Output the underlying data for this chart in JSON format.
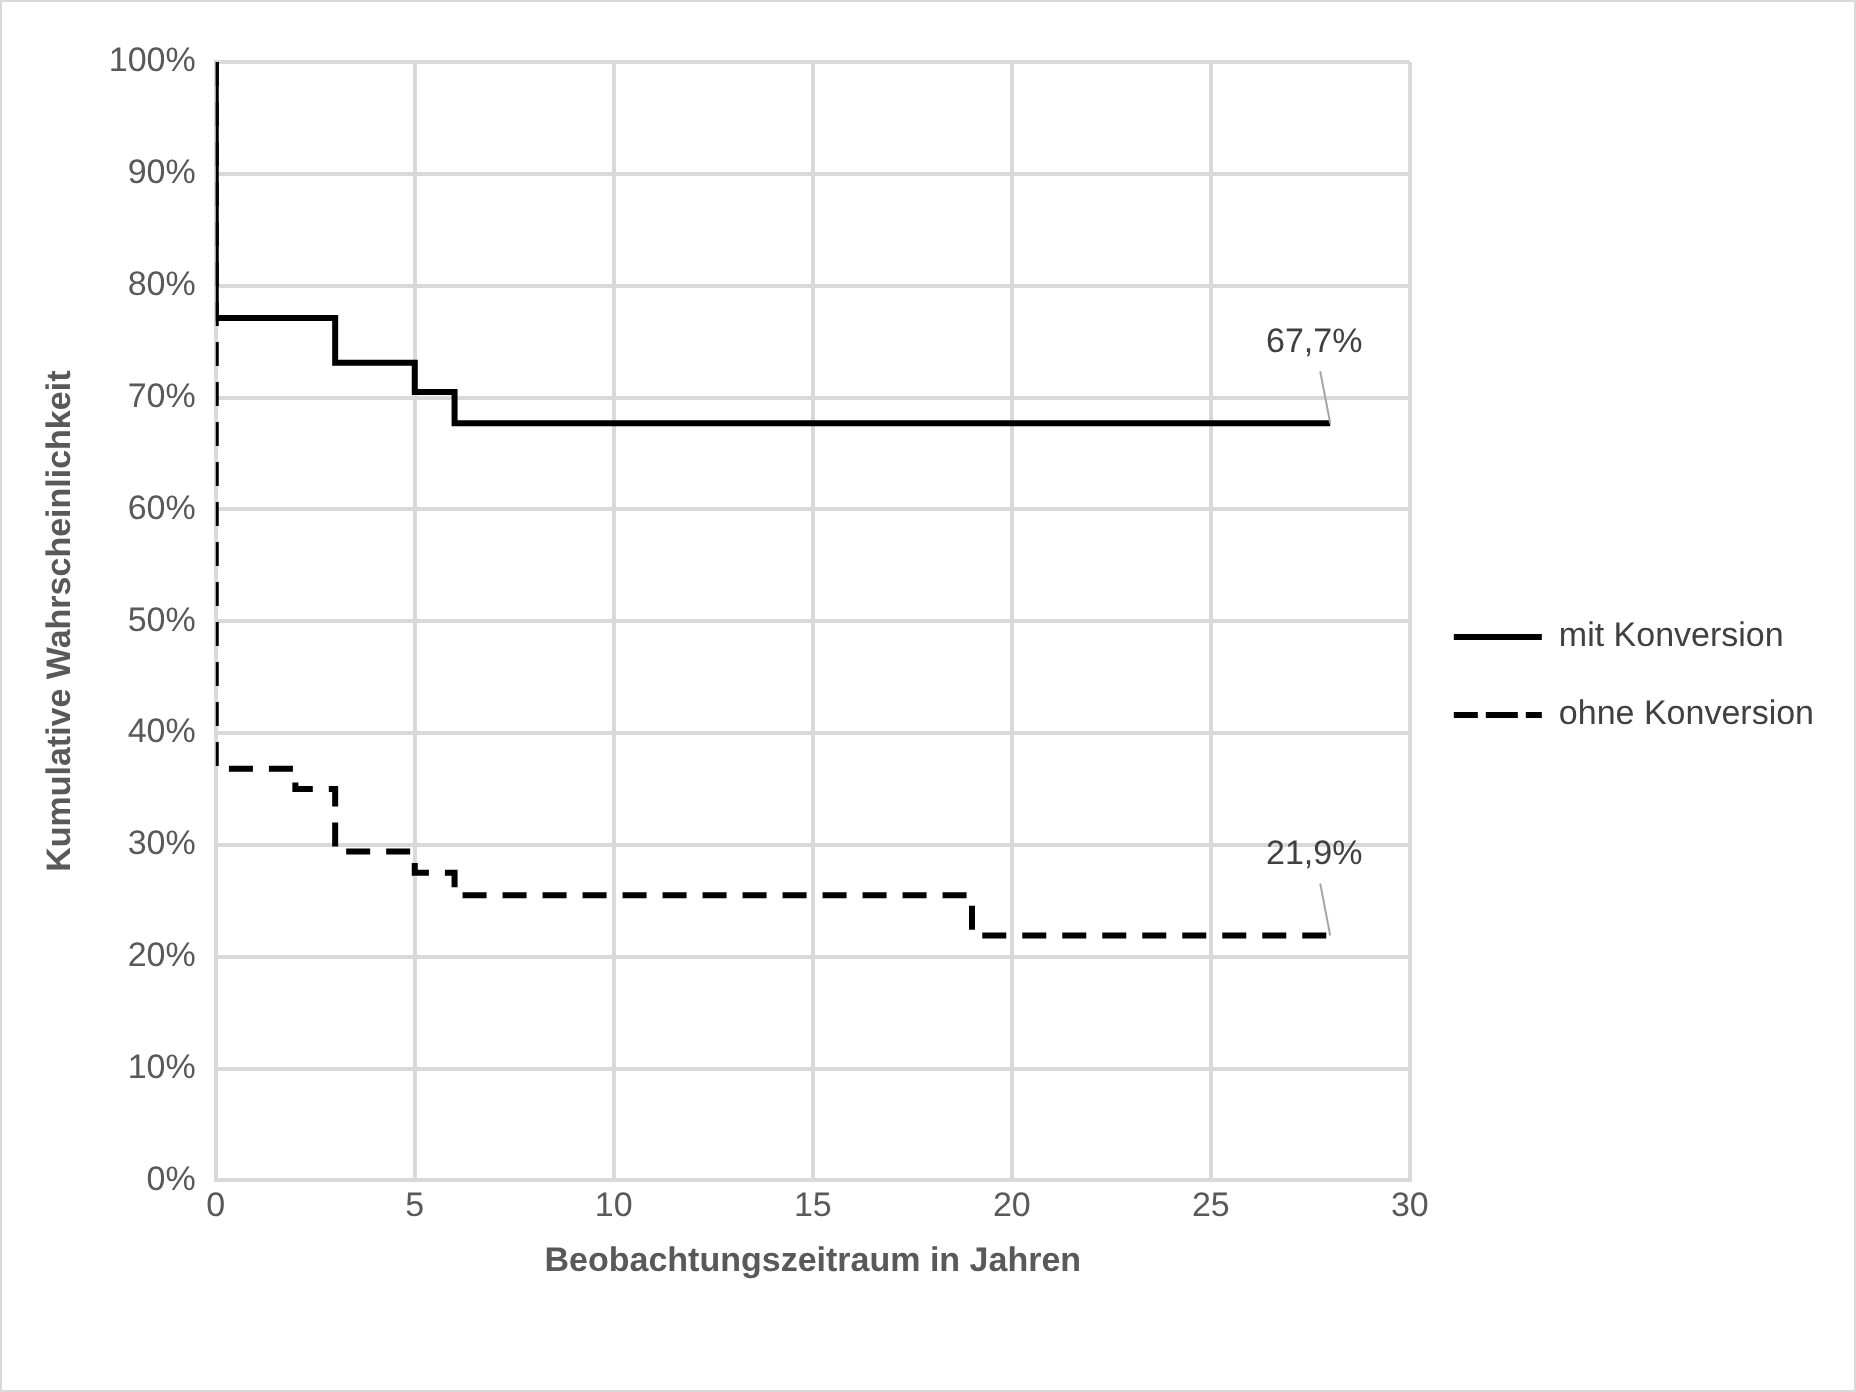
{
  "chart_data": {
    "type": "step",
    "xlabel": "Beobachtungszeitraum in Jahren",
    "ylabel": "Kumulative Wahrscheinlichkeit",
    "xlim": [
      0,
      30
    ],
    "xticks": [
      0,
      5,
      10,
      15,
      20,
      25,
      30
    ],
    "ylim": [
      0,
      100
    ],
    "yticks": [
      {
        "value": 0,
        "label": "0%"
      },
      {
        "value": 10,
        "label": "10%"
      },
      {
        "value": 20,
        "label": "20%"
      },
      {
        "value": 30,
        "label": "30%"
      },
      {
        "value": 40,
        "label": "40%"
      },
      {
        "value": 50,
        "label": "50%"
      },
      {
        "value": 60,
        "label": "60%"
      },
      {
        "value": 70,
        "label": "70%"
      },
      {
        "value": 80,
        "label": "80%"
      },
      {
        "value": 90,
        "label": "90%"
      },
      {
        "value": 100,
        "label": "100%"
      }
    ],
    "grid": true,
    "legend": "right",
    "marker": "none",
    "series": [
      {
        "name": "mit Konversion",
        "color": "#000000",
        "line_style": "solid",
        "x": [
          0,
          0,
          3,
          5,
          6,
          28
        ],
        "values": [
          100,
          77.1,
          73.1,
          70.5,
          67.7,
          67.7
        ]
      },
      {
        "name": "ohne Konversion",
        "color": "#000000",
        "line_style": "dashed",
        "x": [
          0,
          0,
          2,
          3,
          5,
          6,
          19,
          28
        ],
        "values": [
          100,
          36.8,
          35.0,
          29.4,
          27.5,
          25.5,
          21.9,
          21.9
        ]
      }
    ],
    "annotations": [
      {
        "text": "67,7%",
        "x": 28,
        "y": 67.7
      },
      {
        "text": "21,9%",
        "x": 28,
        "y": 21.9
      }
    ]
  }
}
